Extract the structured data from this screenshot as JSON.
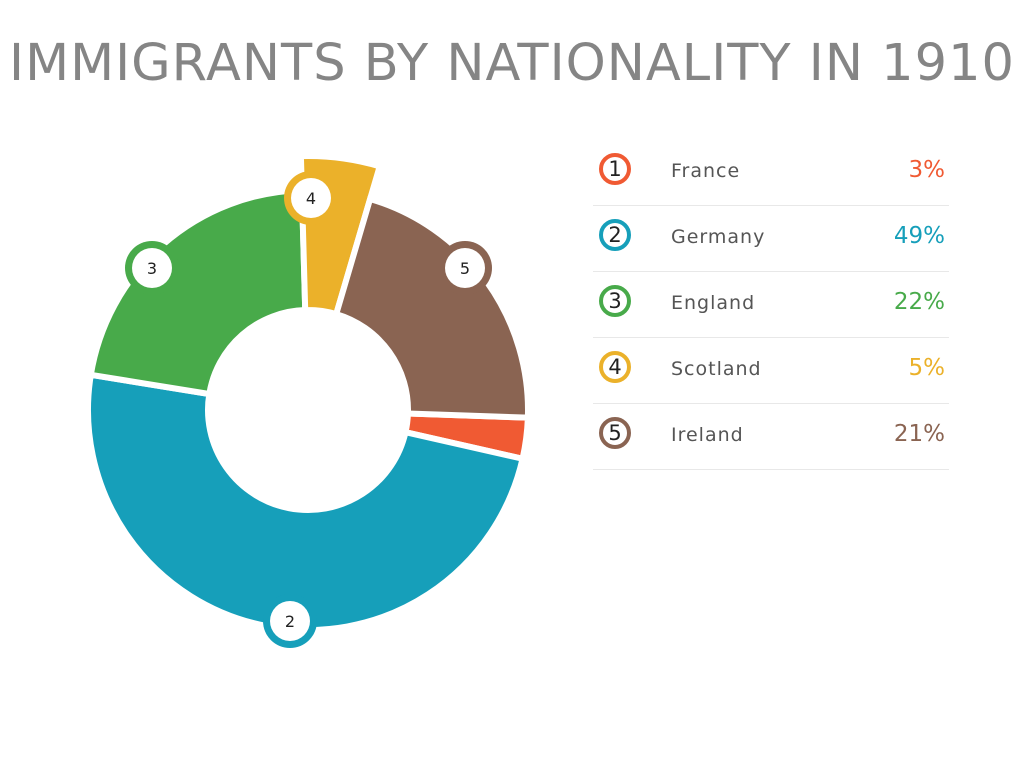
{
  "chart_data": {
    "type": "pie",
    "title": "IMMIGRANTS BY NATIONALITY IN 1910",
    "categories": [
      "France",
      "Germany",
      "England",
      "Scotland",
      "Ireland"
    ],
    "values": [
      3,
      49,
      22,
      5,
      21
    ],
    "value_labels": [
      "3%",
      "49%",
      "22%",
      "5%",
      "21%"
    ],
    "numbers": [
      "1",
      "2",
      "3",
      "4",
      "5"
    ],
    "colors": [
      "#f05a33",
      "#169fba",
      "#48aa4a",
      "#ebb12a",
      "#8a6452"
    ],
    "unit": "%",
    "donut": true,
    "legend": "right"
  }
}
